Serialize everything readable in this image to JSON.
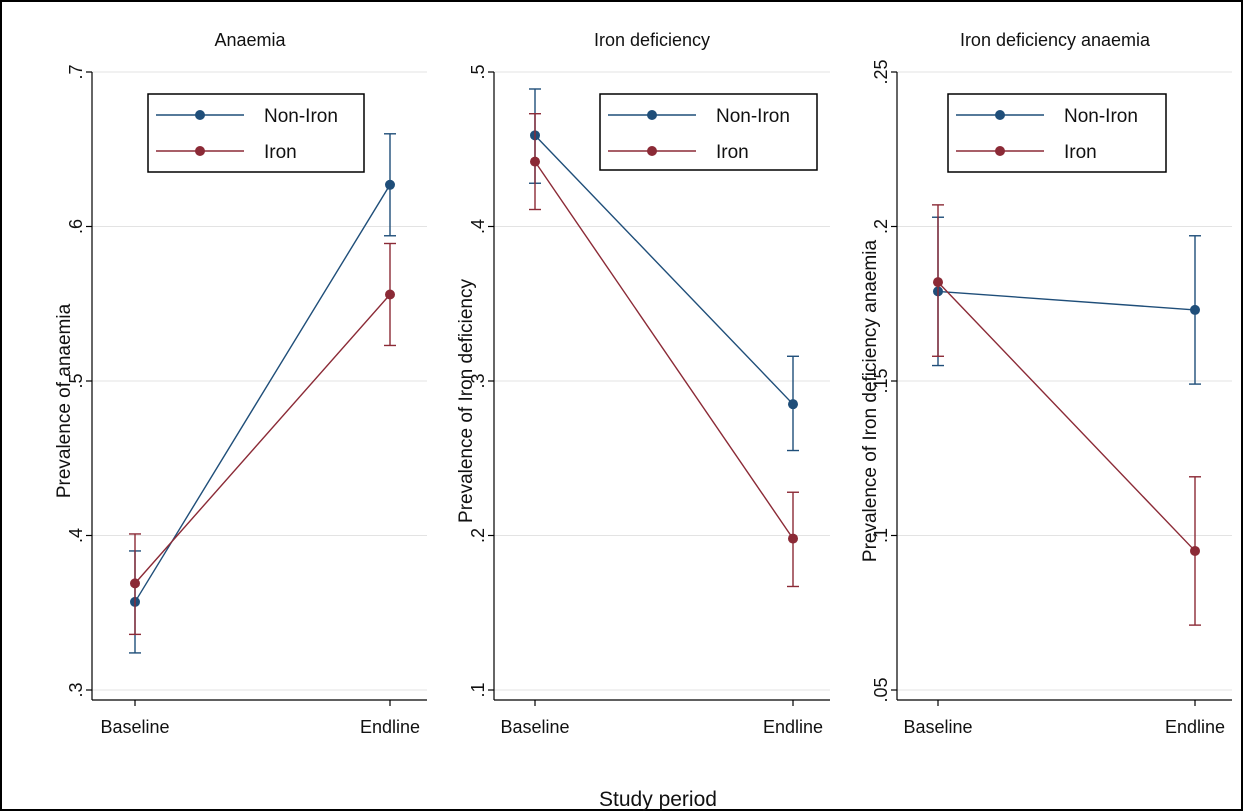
{
  "chart_data": {
    "type": "line",
    "xlabel": "Study period",
    "legend_placement": "top-right",
    "grid": true,
    "colors": {
      "Non-Iron": "#1f4e79",
      "Iron": "#8b2a36",
      "grid": "#e3e3e3",
      "frame": "#000000"
    },
    "panels": [
      {
        "title": "Anaemia",
        "ylabel": "Prevalence of anaemia",
        "ylim": [
          0.3,
          0.7
        ],
        "yticks": [
          0.3,
          0.4,
          0.5,
          0.6,
          0.7
        ],
        "ytick_labels": [
          ".3",
          ".4",
          ".5",
          ".6",
          ".7"
        ],
        "categories": [
          "Baseline",
          "Endline"
        ],
        "series": [
          {
            "name": "Non-Iron",
            "values": [
              0.357,
              0.627
            ],
            "lower": [
              0.324,
              0.594
            ],
            "upper": [
              0.39,
              0.66
            ]
          },
          {
            "name": "Iron",
            "values": [
              0.369,
              0.556
            ],
            "lower": [
              0.336,
              0.523
            ],
            "upper": [
              0.401,
              0.589
            ]
          }
        ]
      },
      {
        "title": "Iron deficiency",
        "ylabel": "Prevalence of Iron deficiency",
        "ylim": [
          0.1,
          0.5
        ],
        "yticks": [
          0.1,
          0.2,
          0.3,
          0.4,
          0.5
        ],
        "ytick_labels": [
          ".1",
          ".2",
          ".3",
          ".4",
          ".5"
        ],
        "categories": [
          "Baseline",
          "Endline"
        ],
        "series": [
          {
            "name": "Non-Iron",
            "values": [
              0.459,
              0.285
            ],
            "lower": [
              0.428,
              0.255
            ],
            "upper": [
              0.489,
              0.316
            ]
          },
          {
            "name": "Iron",
            "values": [
              0.442,
              0.198
            ],
            "lower": [
              0.411,
              0.167
            ],
            "upper": [
              0.473,
              0.228
            ]
          }
        ]
      },
      {
        "title": "Iron deficiency anaemia",
        "ylabel": "Prevalence of Iron deficiency anaemia",
        "ylim": [
          0.05,
          0.25
        ],
        "yticks": [
          0.05,
          0.1,
          0.15,
          0.2,
          0.25
        ],
        "ytick_labels": [
          ".05",
          ".1",
          ".15",
          ".2",
          ".25"
        ],
        "categories": [
          "Baseline",
          "Endline"
        ],
        "series": [
          {
            "name": "Non-Iron",
            "values": [
              0.179,
              0.173
            ],
            "lower": [
              0.155,
              0.149
            ],
            "upper": [
              0.203,
              0.197
            ]
          },
          {
            "name": "Iron",
            "values": [
              0.182,
              0.095
            ],
            "lower": [
              0.158,
              0.071
            ],
            "upper": [
              0.207,
              0.119
            ]
          }
        ]
      }
    ]
  }
}
